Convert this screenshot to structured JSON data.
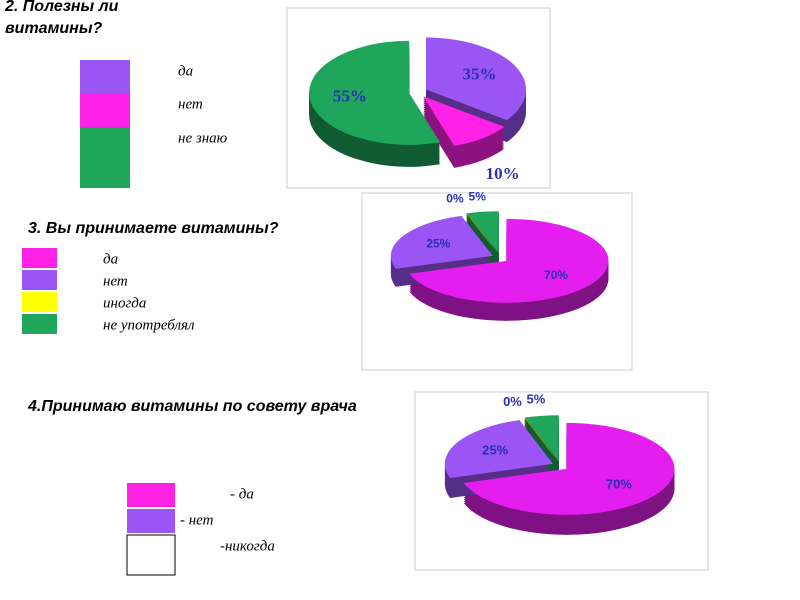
{
  "chart_data": [
    {
      "type": "pie",
      "title": "2. Полезны ли витамины?",
      "categories": [
        "да",
        "нет",
        "не знаю"
      ],
      "values": [
        35,
        10,
        55
      ],
      "value_labels": [
        "35%",
        "10%",
        "55%"
      ],
      "colors": [
        "#9b55f5",
        "#ff22e6",
        "#1fa65a"
      ],
      "legend_colors": [
        "#9b55f5",
        "#ff22e6",
        "#1fa65a"
      ]
    },
    {
      "type": "pie",
      "title": "3. Вы принимаете витамины?",
      "categories": [
        "да",
        "нет",
        "иногда",
        "не употреблял"
      ],
      "values": [
        70,
        25,
        0,
        5
      ],
      "value_labels": [
        "70%",
        "25%",
        "0%",
        "5%"
      ],
      "colors": [
        "#e51ef0",
        "#9b55f5",
        "#8a8a10",
        "#1fa65a"
      ],
      "legend_colors": [
        "#ff22e6",
        "#9b55f5",
        "#ffff00",
        "#1fa65a"
      ]
    },
    {
      "type": "pie",
      "title": "4.Принимаю витамины по совету врача",
      "categories": [
        "- да",
        "-  нет",
        "-никогда",
        null
      ],
      "values": [
        70,
        25,
        0,
        5
      ],
      "value_labels": [
        "70%",
        "25%",
        "0%",
        "5%"
      ],
      "colors": [
        "#e51ef0",
        "#9b55f5",
        "#8a8a10",
        "#1fa65a"
      ],
      "legend_colors": [
        "#ff22e6",
        "#9b55f5",
        "#ffffff"
      ]
    }
  ]
}
